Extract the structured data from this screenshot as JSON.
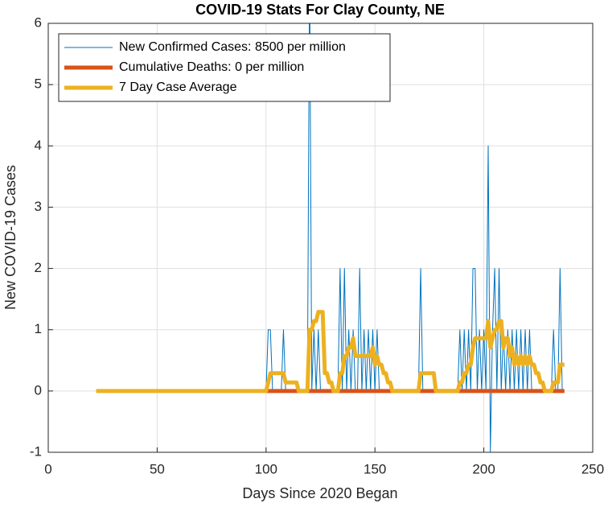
{
  "chart_data": {
    "type": "line",
    "title": "COVID-19 Stats For Clay County, NE",
    "xlabel": "Days Since 2020 Began",
    "ylabel": "New COVID-19 Cases",
    "xlim": [
      0,
      250
    ],
    "xticks": [
      0,
      50,
      100,
      150,
      200,
      250
    ],
    "ylim": [
      -1,
      6
    ],
    "yticks": [
      -1,
      0,
      1,
      2,
      3,
      4,
      5,
      6
    ],
    "grid": true,
    "legend": "northwest",
    "x": [
      22,
      23,
      24,
      25,
      26,
      27,
      28,
      29,
      30,
      31,
      32,
      33,
      34,
      35,
      36,
      37,
      38,
      39,
      40,
      41,
      42,
      43,
      44,
      45,
      46,
      47,
      48,
      49,
      50,
      51,
      52,
      53,
      54,
      55,
      56,
      57,
      58,
      59,
      60,
      61,
      62,
      63,
      64,
      65,
      66,
      67,
      68,
      69,
      70,
      71,
      72,
      73,
      74,
      75,
      76,
      77,
      78,
      79,
      80,
      81,
      82,
      83,
      84,
      85,
      86,
      87,
      88,
      89,
      90,
      91,
      92,
      93,
      94,
      95,
      96,
      97,
      98,
      99,
      100,
      101,
      102,
      103,
      104,
      105,
      106,
      107,
      108,
      109,
      110,
      111,
      112,
      113,
      114,
      115,
      116,
      117,
      118,
      119,
      120,
      121,
      122,
      123,
      124,
      125,
      126,
      127,
      128,
      129,
      130,
      131,
      132,
      133,
      134,
      135,
      136,
      137,
      138,
      139,
      140,
      141,
      142,
      143,
      144,
      145,
      146,
      147,
      148,
      149,
      150,
      151,
      152,
      153,
      154,
      155,
      156,
      157,
      158,
      159,
      160,
      161,
      162,
      163,
      164,
      165,
      166,
      167,
      168,
      169,
      170,
      171,
      172,
      173,
      174,
      175,
      176,
      177,
      178,
      179,
      180,
      181,
      182,
      183,
      184,
      185,
      186,
      187,
      188,
      189,
      190,
      191,
      192,
      193,
      194,
      195,
      196,
      197,
      198,
      199,
      200,
      201,
      202,
      203,
      204,
      205,
      206,
      207,
      208,
      209,
      210,
      211,
      212,
      213,
      214,
      215,
      216,
      217,
      218,
      219,
      220,
      221,
      222,
      223,
      224,
      225,
      226,
      227,
      228,
      229,
      230,
      231,
      232,
      233,
      234,
      235,
      236,
      237
    ],
    "series": [
      {
        "name": "New Confirmed Cases: 8500 per million",
        "color": "#0072bd",
        "width": 1,
        "values": [
          0,
          0,
          0,
          0,
          0,
          0,
          0,
          0,
          0,
          0,
          0,
          0,
          0,
          0,
          0,
          0,
          0,
          0,
          0,
          0,
          0,
          0,
          0,
          0,
          0,
          0,
          0,
          0,
          0,
          0,
          0,
          0,
          0,
          0,
          0,
          0,
          0,
          0,
          0,
          0,
          0,
          0,
          0,
          0,
          0,
          0,
          0,
          0,
          0,
          0,
          0,
          0,
          0,
          0,
          0,
          0,
          0,
          0,
          0,
          0,
          0,
          0,
          0,
          0,
          0,
          0,
          0,
          0,
          0,
          0,
          0,
          0,
          0,
          0,
          0,
          0,
          0,
          0,
          0,
          1,
          1,
          0,
          0,
          0,
          0,
          0,
          1,
          0,
          0,
          0,
          0,
          0,
          0,
          0,
          0,
          0,
          0,
          0,
          7,
          0,
          1,
          0,
          1,
          0,
          0,
          0,
          0,
          0,
          0,
          0,
          0,
          0,
          2,
          0,
          2,
          0,
          1,
          0,
          1,
          0,
          0,
          2,
          0,
          1,
          0,
          1,
          0,
          1,
          0,
          1,
          0,
          0,
          0,
          0,
          0,
          0,
          0,
          0,
          0,
          0,
          0,
          0,
          0,
          0,
          0,
          0,
          0,
          0,
          0,
          2,
          0,
          0,
          0,
          0,
          0,
          0,
          0,
          0,
          0,
          0,
          0,
          0,
          0,
          0,
          0,
          0,
          0,
          1,
          0,
          1,
          0,
          1,
          0,
          2,
          2,
          0,
          1,
          0,
          1,
          0,
          4,
          -1,
          1,
          2,
          0,
          2,
          0,
          1,
          0,
          1,
          0,
          1,
          0,
          1,
          0,
          1,
          0,
          1,
          0,
          1,
          0,
          0,
          0,
          0,
          0,
          0,
          0,
          0,
          0,
          0,
          1,
          0,
          0,
          2,
          0,
          0
        ]
      },
      {
        "name": "Cumulative Deaths: 0 per million",
        "color": "#d95319",
        "width": 5,
        "values": [
          null,
          null,
          null,
          null,
          null,
          null,
          null,
          null,
          null,
          null,
          null,
          null,
          null,
          null,
          null,
          null,
          null,
          null,
          null,
          null,
          null,
          null,
          null,
          null,
          null,
          null,
          null,
          null,
          null,
          null,
          null,
          null,
          null,
          null,
          null,
          null,
          null,
          null,
          null,
          null,
          null,
          null,
          null,
          null,
          null,
          null,
          null,
          null,
          null,
          null,
          null,
          null,
          null,
          null,
          null,
          null,
          null,
          null,
          null,
          null,
          null,
          null,
          null,
          null,
          null,
          null,
          null,
          null,
          null,
          null,
          null,
          null,
          null,
          null,
          null,
          null,
          null,
          null,
          0,
          0,
          0,
          0,
          0,
          0,
          0,
          0,
          0,
          0,
          0,
          0,
          0,
          0,
          0,
          0,
          0,
          0,
          0,
          0,
          0,
          0,
          0,
          0,
          0,
          0,
          0,
          0,
          0,
          0,
          0,
          0,
          0,
          0,
          0,
          0,
          0,
          0,
          0,
          0,
          0,
          0,
          0,
          0,
          0,
          0,
          0,
          0,
          0,
          0,
          0,
          0,
          0,
          0,
          0,
          0,
          0,
          0,
          0,
          0,
          0,
          0,
          0,
          0,
          0,
          0,
          0,
          0,
          0,
          0,
          0,
          0,
          0,
          0,
          0,
          0,
          0,
          0,
          0,
          0,
          0,
          0,
          0,
          0,
          0,
          0,
          0,
          0,
          0,
          0,
          0,
          0,
          0,
          0,
          0,
          0,
          0,
          0,
          0,
          0,
          0,
          0,
          0,
          0,
          0,
          0,
          0,
          0,
          0,
          0,
          0,
          0,
          0,
          0,
          0,
          0,
          0,
          0,
          0,
          0,
          0,
          0,
          0,
          0,
          0,
          0,
          0,
          0,
          0,
          0,
          0,
          0,
          0,
          0,
          0,
          0,
          0,
          0
        ]
      },
      {
        "name": "7 Day Case Average",
        "color": "#edb120",
        "width": 5,
        "values": [
          0,
          0,
          0,
          0,
          0,
          0,
          0,
          0,
          0,
          0,
          0,
          0,
          0,
          0,
          0,
          0,
          0,
          0,
          0,
          0,
          0,
          0,
          0,
          0,
          0,
          0,
          0,
          0,
          0,
          0,
          0,
          0,
          0,
          0,
          0,
          0,
          0,
          0,
          0,
          0,
          0,
          0,
          0,
          0,
          0,
          0,
          0,
          0,
          0,
          0,
          0,
          0,
          0,
          0,
          0,
          0,
          0,
          0,
          0,
          0,
          0,
          0,
          0,
          0,
          0,
          0,
          0,
          0,
          0,
          0,
          0,
          0,
          0,
          0,
          0,
          0,
          0,
          0,
          0,
          0.14,
          0.29,
          0.29,
          0.29,
          0.29,
          0.29,
          0.29,
          0.29,
          0.14,
          0.14,
          0.14,
          0.14,
          0.14,
          0.14,
          0,
          0,
          0,
          0,
          0,
          1,
          1,
          1.14,
          1.14,
          1.29,
          1.29,
          1.29,
          0.29,
          0.29,
          0.14,
          0.14,
          0,
          0,
          0,
          0.29,
          0.29,
          0.57,
          0.57,
          0.71,
          0.71,
          0.86,
          0.57,
          0.57,
          0.57,
          0.57,
          0.57,
          0.57,
          0.57,
          0.57,
          0.71,
          0.43,
          0.57,
          0.43,
          0.43,
          0.29,
          0.29,
          0.14,
          0.14,
          0,
          0,
          0,
          0,
          0,
          0,
          0,
          0,
          0,
          0,
          0,
          0,
          0,
          0.29,
          0.29,
          0.29,
          0.29,
          0.29,
          0.29,
          0.29,
          0,
          0,
          0,
          0,
          0,
          0,
          0,
          0,
          0,
          0,
          0,
          0.14,
          0.14,
          0.29,
          0.29,
          0.43,
          0.43,
          0.71,
          0.86,
          0.86,
          0.86,
          0.86,
          0.86,
          0.86,
          1.14,
          0.71,
          0.86,
          1,
          1,
          1.14,
          1.14,
          0.71,
          0.86,
          0.86,
          0.57,
          0.71,
          0.43,
          0.57,
          0.43,
          0.57,
          0.43,
          0.57,
          0.43,
          0.57,
          0.43,
          0.43,
          0.29,
          0.29,
          0.14,
          0.14,
          0,
          0,
          0,
          0,
          0.14,
          0.14,
          0.14,
          0.43,
          0.43,
          0.43
        ]
      }
    ]
  }
}
